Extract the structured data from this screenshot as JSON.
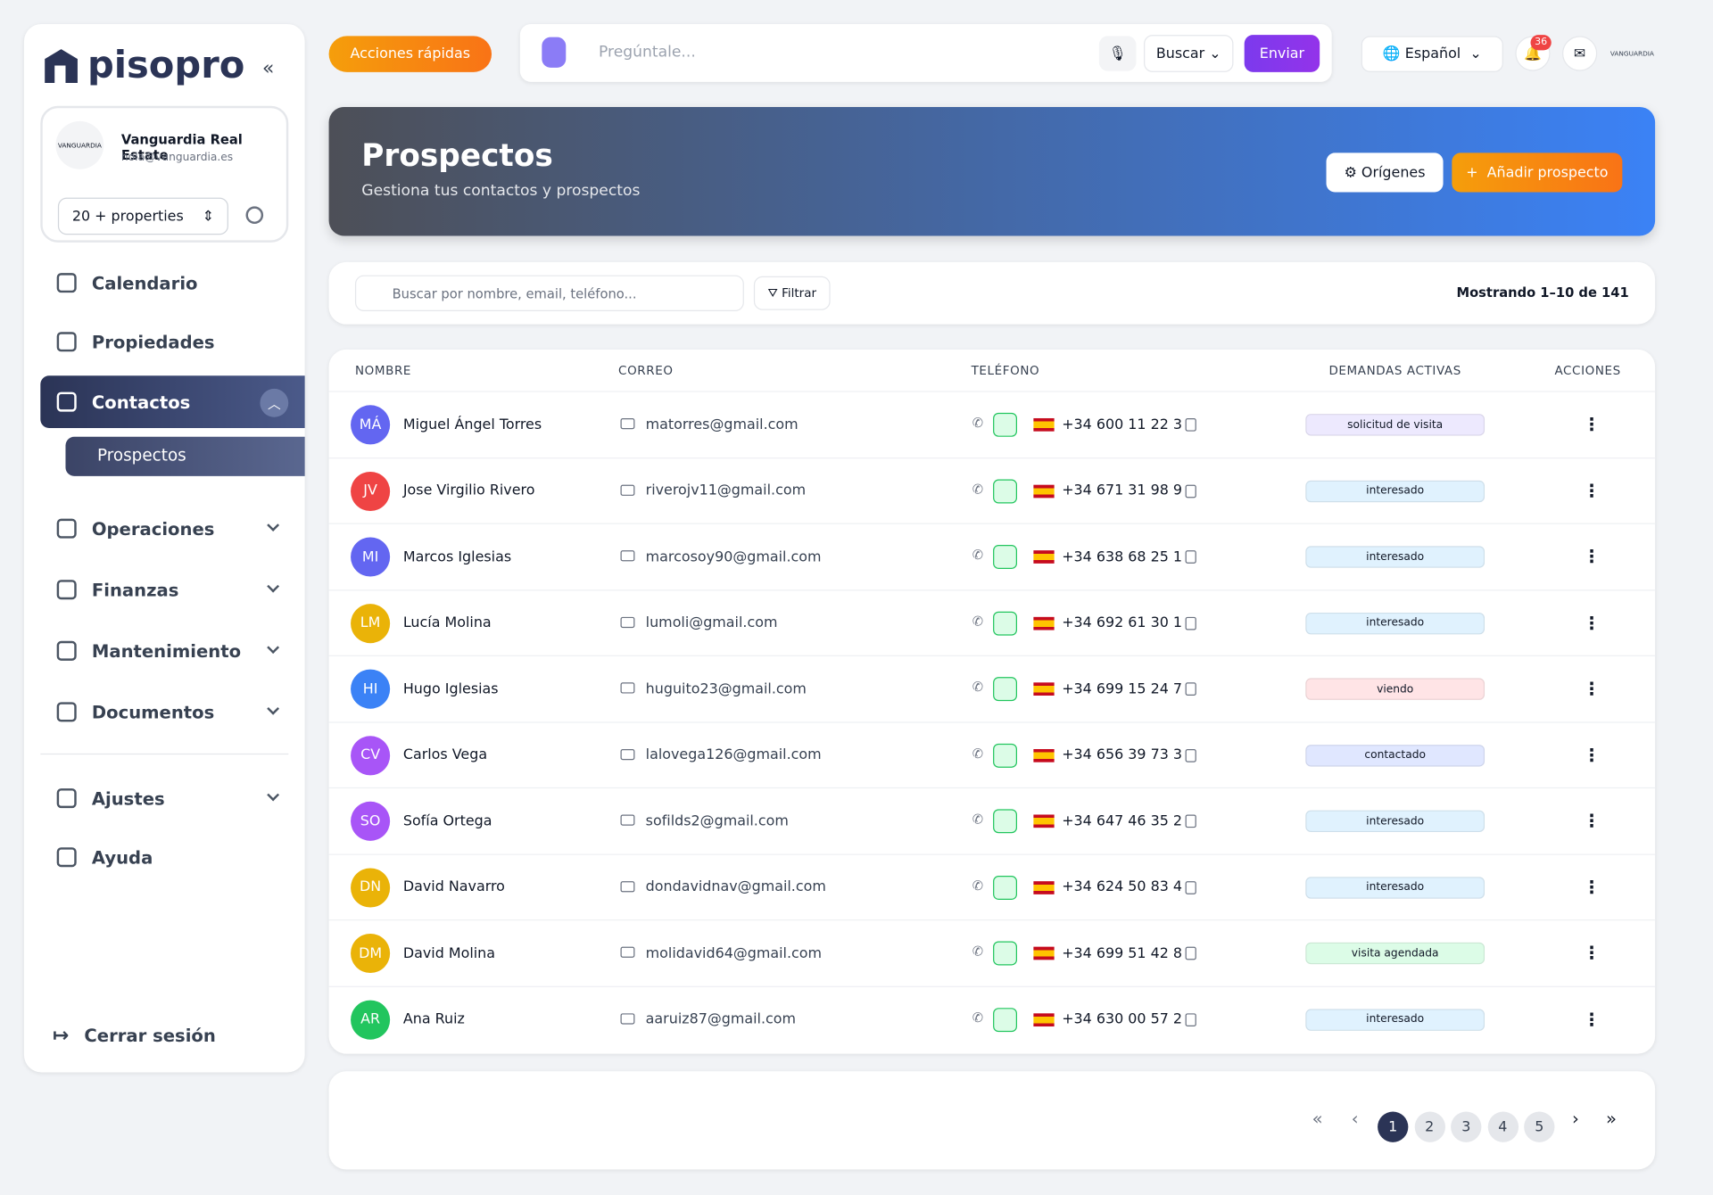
{
  "sidebar": {
    "logo": "pisopro",
    "account": {
      "name": "Vanguardia Real Estate",
      "email": "hola@vanguardia.es",
      "logo_text": "VANGUARDIA"
    },
    "properties": "20 + properties",
    "nav": [
      {
        "label": "Calendario"
      },
      {
        "label": "Propiedades"
      },
      {
        "label": "Contactos"
      },
      {
        "label": "Operaciones"
      },
      {
        "label": "Finanzas"
      },
      {
        "label": "Mantenimiento"
      },
      {
        "label": "Documentos"
      },
      {
        "label": "Ajustes"
      },
      {
        "label": "Ayuda"
      }
    ],
    "subnav": "Prospectos",
    "logout": "Cerrar sesión"
  },
  "topbar": {
    "quick_actions": "Acciones rápidas",
    "ask_placeholder": "Pregúntale...",
    "search_mode": "Buscar",
    "send": "Enviar",
    "language": "Español",
    "notifications": 36,
    "brand": "VANGUARDIA"
  },
  "header": {
    "title": "Prospectos",
    "subtitle": "Gestiona tus contactos y prospectos",
    "origins": "Orígenes",
    "add": "Añadir prospecto"
  },
  "toolbar": {
    "search_placeholder": "Buscar por nombre, email, teléfono...",
    "filter": "Filtrar",
    "showing": "Mostrando 1–10 de 141"
  },
  "table": {
    "columns": [
      "NOMBRE",
      "CORREO",
      "TELÉFONO",
      "DEMANDAS ACTIVAS",
      "ACCIONES"
    ],
    "rows": [
      {
        "initials": "MÁ",
        "avatar_color": "#6366f1",
        "name": "Miguel Ángel Torres",
        "email": "matorres@gmail.com",
        "phone": "+34 600 11 22 3",
        "status": "solicitud de visita",
        "status_color": "#ede9fe"
      },
      {
        "initials": "JV",
        "avatar_color": "#ef4444",
        "name": "Jose Virgilio Rivero",
        "email": "riverojv11@gmail.com",
        "phone": "+34 671 31 98 9",
        "status": "interesado",
        "status_color": "#e0f2fe"
      },
      {
        "initials": "MI",
        "avatar_color": "#6366f1",
        "name": "Marcos Iglesias",
        "email": "marcosoy90@gmail.com",
        "phone": "+34 638 68 25 1",
        "status": "interesado",
        "status_color": "#e0f2fe"
      },
      {
        "initials": "LM",
        "avatar_color": "#eab308",
        "name": "Lucía Molina",
        "email": "lumoli@gmail.com",
        "phone": "+34 692 61 30 1",
        "status": "interesado",
        "status_color": "#e0f2fe"
      },
      {
        "initials": "HI",
        "avatar_color": "#3b82f6",
        "name": "Hugo Iglesias",
        "email": "huguito23@gmail.com",
        "phone": "+34 699 15 24 7",
        "status": "viendo",
        "status_color": "#ffe4e6"
      },
      {
        "initials": "CV",
        "avatar_color": "#a855f7",
        "name": "Carlos Vega",
        "email": "lalovega126@gmail.com",
        "phone": "+34 656 39 73 3",
        "status": "contactado",
        "status_color": "#e0e7ff"
      },
      {
        "initials": "SO",
        "avatar_color": "#a855f7",
        "name": "Sofía Ortega",
        "email": "sofilds2@gmail.com",
        "phone": "+34 647 46 35 2",
        "status": "interesado",
        "status_color": "#e0f2fe"
      },
      {
        "initials": "DN",
        "avatar_color": "#eab308",
        "name": "David Navarro",
        "email": "dondavidnav@gmail.com",
        "phone": "+34 624 50 83 4",
        "status": "interesado",
        "status_color": "#e0f2fe"
      },
      {
        "initials": "DM",
        "avatar_color": "#eab308",
        "name": "David Molina",
        "email": "molidavid64@gmail.com",
        "phone": "+34 699 51 42 8",
        "status": "visita agendada",
        "status_color": "#dcfce7"
      },
      {
        "initials": "AR",
        "avatar_color": "#22c55e",
        "name": "Ana Ruiz",
        "email": "aaruiz87@gmail.com",
        "phone": "+34 630 00 57 2",
        "status": "interesado",
        "status_color": "#e0f2fe"
      }
    ]
  },
  "pagination": {
    "pages": [
      1,
      2,
      3,
      4,
      5
    ]
  }
}
